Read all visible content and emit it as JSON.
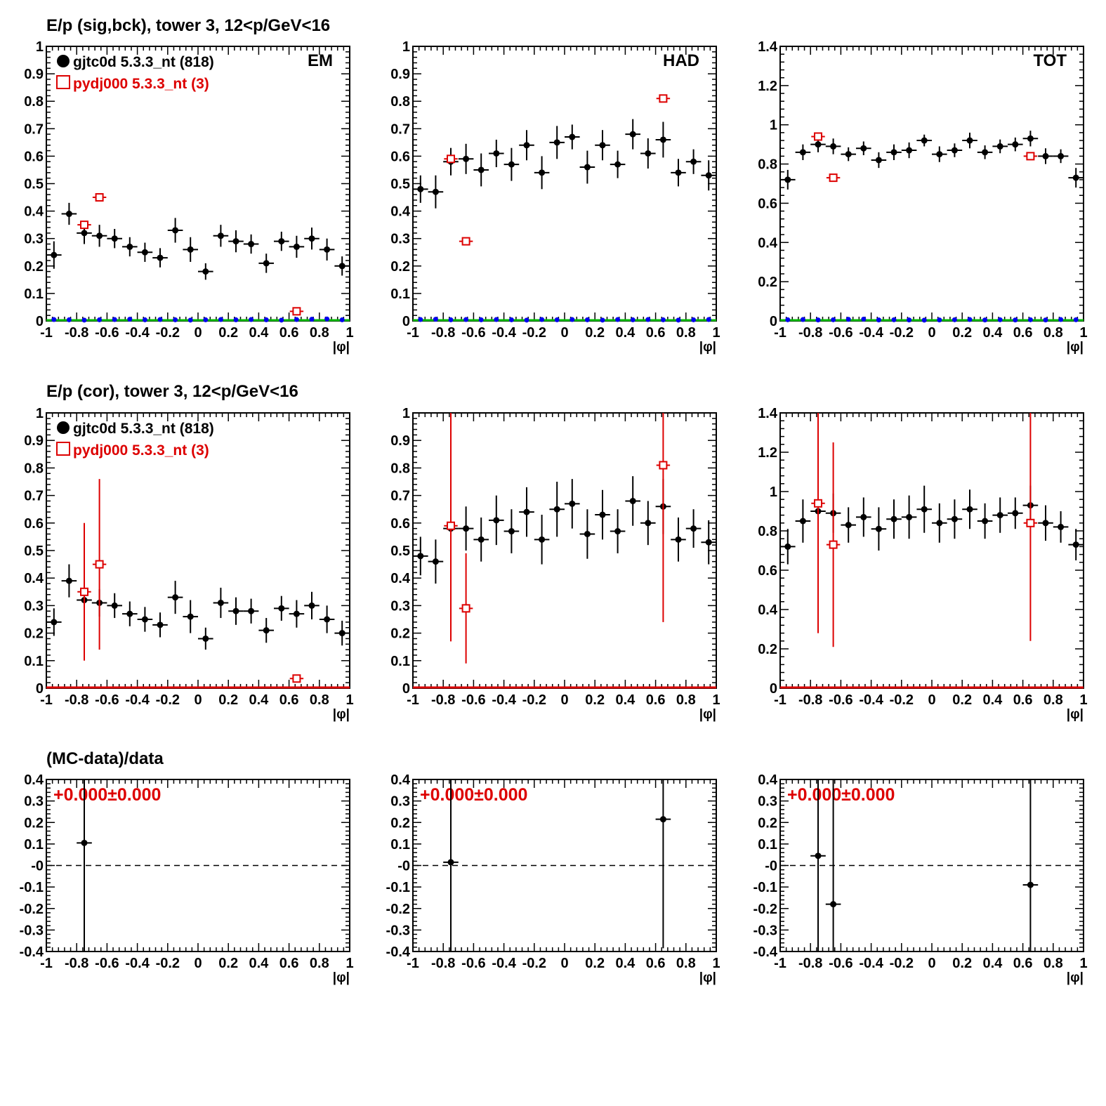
{
  "row_titles": [
    "E/p (sig,bck), tower 3, 12<p/GeV<16",
    "E/p (cor), tower 3, 12<p/GeV<16",
    "(MC-data)/data"
  ],
  "legend": {
    "data": "gjtc0d 5.3.3_nt (818)",
    "mc": "pydj000 5.3.3_nt (3)"
  },
  "colors": {
    "data": "#000000",
    "mc": "#dd0000",
    "bck": "#0000ee",
    "green": "#00bb00",
    "ratio_text": "#dd0000"
  },
  "chart_data": [
    {
      "type": "scatter",
      "row": 0,
      "col": 0,
      "corner_label": "EM",
      "xlabel": "|φ|",
      "xlim": [
        -1,
        1
      ],
      "ylim": [
        0,
        1
      ],
      "xticks": [
        "-1",
        "-0.8",
        "-0.6",
        "-0.4",
        "-0.2",
        "0",
        "0.2",
        "0.4",
        "0.6",
        "0.8",
        "1"
      ],
      "yticks": [
        "0",
        "0.1",
        "0.2",
        "0.3",
        "0.4",
        "0.5",
        "0.6",
        "0.7",
        "0.8",
        "0.9",
        "1"
      ],
      "show_legend": true,
      "baseline": "green",
      "series": [
        {
          "name": "gjtc0d 5.3.3_nt (818)",
          "marker": "dot",
          "x": [
            -0.95,
            -0.85,
            -0.75,
            -0.65,
            -0.55,
            -0.45,
            -0.35,
            -0.25,
            -0.15,
            -0.05,
            0.05,
            0.15,
            0.25,
            0.35,
            0.45,
            0.55,
            0.65,
            0.75,
            0.85,
            0.95
          ],
          "y": [
            0.24,
            0.39,
            0.32,
            0.31,
            0.3,
            0.27,
            0.25,
            0.23,
            0.33,
            0.26,
            0.18,
            0.31,
            0.29,
            0.28,
            0.21,
            0.29,
            0.27,
            0.3,
            0.26,
            0.2
          ],
          "err": [
            0.05,
            0.04,
            0.04,
            0.04,
            0.035,
            0.035,
            0.035,
            0.035,
            0.045,
            0.045,
            0.03,
            0.04,
            0.04,
            0.035,
            0.035,
            0.035,
            0.04,
            0.04,
            0.04,
            0.035
          ]
        },
        {
          "name": "pydj000 5.3.3_nt (3)",
          "marker": "open-square",
          "x": [
            -0.75,
            -0.65,
            0.65
          ],
          "y": [
            0.35,
            0.45,
            0.035
          ],
          "err": [
            0,
            0,
            0
          ]
        },
        {
          "name": "bck",
          "marker": "small-dot",
          "x": [
            -0.95,
            -0.85,
            -0.75,
            -0.65,
            -0.55,
            -0.45,
            -0.35,
            -0.25,
            -0.15,
            -0.05,
            0.05,
            0.15,
            0.25,
            0.35,
            0.45,
            0.55,
            0.65,
            0.75,
            0.85,
            0.95
          ],
          "y": [
            0.005,
            0.004,
            0.003,
            0.004,
            0.005,
            0.006,
            0.004,
            0.005,
            0.004,
            0.003,
            0.004,
            0.005,
            0.004,
            0.005,
            0.004,
            0.003,
            0.005,
            0.006,
            0.007,
            0.004
          ],
          "err": []
        }
      ]
    },
    {
      "type": "scatter",
      "row": 0,
      "col": 1,
      "corner_label": "HAD",
      "xlabel": "|φ|",
      "xlim": [
        -1,
        1
      ],
      "ylim": [
        0,
        1
      ],
      "xticks": [
        "-1",
        "-0.8",
        "-0.6",
        "-0.4",
        "-0.2",
        "0",
        "0.2",
        "0.4",
        "0.6",
        "0.8",
        "1"
      ],
      "yticks": [
        "0",
        "0.1",
        "0.2",
        "0.3",
        "0.4",
        "0.5",
        "0.6",
        "0.7",
        "0.8",
        "0.9",
        "1"
      ],
      "show_legend": false,
      "baseline": "green",
      "series": [
        {
          "name": "gjtc0d 5.3.3_nt (818)",
          "marker": "dot",
          "x": [
            -0.95,
            -0.85,
            -0.75,
            -0.65,
            -0.55,
            -0.45,
            -0.35,
            -0.25,
            -0.15,
            -0.05,
            0.05,
            0.15,
            0.25,
            0.35,
            0.45,
            0.55,
            0.65,
            0.75,
            0.85,
            0.95
          ],
          "y": [
            0.48,
            0.47,
            0.58,
            0.59,
            0.55,
            0.61,
            0.57,
            0.64,
            0.54,
            0.65,
            0.67,
            0.56,
            0.64,
            0.57,
            0.68,
            0.61,
            0.66,
            0.54,
            0.58,
            0.53
          ],
          "err": [
            0.05,
            0.06,
            0.05,
            0.055,
            0.06,
            0.05,
            0.06,
            0.055,
            0.06,
            0.06,
            0.045,
            0.06,
            0.055,
            0.05,
            0.055,
            0.055,
            0.065,
            0.05,
            0.045,
            0.055
          ]
        },
        {
          "name": "pydj000 5.3.3_nt (3)",
          "marker": "open-square",
          "x": [
            -0.75,
            -0.65,
            0.65
          ],
          "y": [
            0.59,
            0.29,
            0.81
          ],
          "err": [
            0,
            0,
            0
          ]
        },
        {
          "name": "bck",
          "marker": "small-dot",
          "x": [
            -0.95,
            -0.85,
            -0.75,
            -0.65,
            -0.55,
            -0.45,
            -0.35,
            -0.25,
            -0.15,
            -0.05,
            0.05,
            0.15,
            0.25,
            0.35,
            0.45,
            0.55,
            0.65,
            0.75,
            0.85,
            0.95
          ],
          "y": [
            0.005,
            0.006,
            0.004,
            0.005,
            0.004,
            0.005,
            0.004,
            0.003,
            0.005,
            0.004,
            0.005,
            0.004,
            0.003,
            0.005,
            0.004,
            0.005,
            0.004,
            0.003,
            0.004,
            0.005
          ],
          "err": []
        }
      ]
    },
    {
      "type": "scatter",
      "row": 0,
      "col": 2,
      "corner_label": "TOT",
      "xlabel": "|φ|",
      "xlim": [
        -1,
        1
      ],
      "ylim": [
        0,
        1.4
      ],
      "xticks": [
        "-1",
        "-0.8",
        "-0.6",
        "-0.4",
        "-0.2",
        "0",
        "0.2",
        "0.4",
        "0.6",
        "0.8",
        "1"
      ],
      "yticks": [
        "0",
        "0.2",
        "0.4",
        "0.6",
        "0.8",
        "1",
        "1.2",
        "1.4"
      ],
      "show_legend": false,
      "baseline": "green",
      "series": [
        {
          "name": "gjtc0d 5.3.3_nt (818)",
          "marker": "dot",
          "x": [
            -0.95,
            -0.85,
            -0.75,
            -0.65,
            -0.55,
            -0.45,
            -0.35,
            -0.25,
            -0.15,
            -0.05,
            0.05,
            0.15,
            0.25,
            0.35,
            0.45,
            0.55,
            0.65,
            0.75,
            0.85,
            0.95
          ],
          "y": [
            0.72,
            0.86,
            0.9,
            0.89,
            0.85,
            0.88,
            0.82,
            0.86,
            0.87,
            0.92,
            0.85,
            0.87,
            0.92,
            0.86,
            0.89,
            0.9,
            0.93,
            0.84,
            0.84,
            0.73
          ],
          "err": [
            0.05,
            0.04,
            0.04,
            0.04,
            0.035,
            0.035,
            0.04,
            0.04,
            0.04,
            0.03,
            0.04,
            0.035,
            0.04,
            0.035,
            0.035,
            0.035,
            0.04,
            0.04,
            0.035,
            0.05
          ]
        },
        {
          "name": "pydj000 5.3.3_nt (3)",
          "marker": "open-square",
          "x": [
            -0.75,
            -0.65,
            0.65
          ],
          "y": [
            0.94,
            0.73,
            0.84
          ],
          "err": [
            0,
            0,
            0
          ]
        },
        {
          "name": "bck",
          "marker": "small-dot",
          "x": [
            -0.95,
            -0.85,
            -0.75,
            -0.65,
            -0.55,
            -0.45,
            -0.35,
            -0.25,
            -0.15,
            -0.05,
            0.05,
            0.15,
            0.25,
            0.35,
            0.45,
            0.55,
            0.65,
            0.75,
            0.85,
            0.95
          ],
          "y": [
            0.006,
            0.007,
            0.005,
            0.006,
            0.008,
            0.009,
            0.005,
            0.006,
            0.005,
            0.004,
            0.005,
            0.006,
            0.007,
            0.005,
            0.006,
            0.005,
            0.006,
            0.005,
            0.007,
            0.006
          ],
          "err": []
        }
      ]
    },
    {
      "type": "scatter",
      "row": 1,
      "col": 0,
      "corner_label": "",
      "xlabel": "|φ|",
      "xlim": [
        -1,
        1
      ],
      "ylim": [
        0,
        1
      ],
      "xticks": [
        "-1",
        "-0.8",
        "-0.6",
        "-0.4",
        "-0.2",
        "0",
        "0.2",
        "0.4",
        "0.6",
        "0.8",
        "1"
      ],
      "yticks": [
        "0",
        "0.1",
        "0.2",
        "0.3",
        "0.4",
        "0.5",
        "0.6",
        "0.7",
        "0.8",
        "0.9",
        "1"
      ],
      "show_legend": true,
      "baseline": "red",
      "series": [
        {
          "name": "gjtc0d 5.3.3_nt (818)",
          "marker": "dot",
          "x": [
            -0.95,
            -0.85,
            -0.75,
            -0.65,
            -0.55,
            -0.45,
            -0.35,
            -0.25,
            -0.15,
            -0.05,
            0.05,
            0.15,
            0.25,
            0.35,
            0.45,
            0.55,
            0.65,
            0.75,
            0.85,
            0.95
          ],
          "y": [
            0.24,
            0.39,
            0.32,
            0.31,
            0.3,
            0.27,
            0.25,
            0.23,
            0.33,
            0.26,
            0.18,
            0.31,
            0.28,
            0.28,
            0.21,
            0.29,
            0.27,
            0.3,
            0.25,
            0.2
          ],
          "err": [
            0.05,
            0.06,
            0.05,
            0.05,
            0.045,
            0.045,
            0.045,
            0.045,
            0.06,
            0.06,
            0.04,
            0.055,
            0.05,
            0.045,
            0.045,
            0.045,
            0.05,
            0.05,
            0.05,
            0.045
          ]
        },
        {
          "name": "pydj000 5.3.3_nt (3)",
          "marker": "open-square",
          "x": [
            -0.75,
            -0.65,
            0.65
          ],
          "y": [
            0.35,
            0.45,
            0.035
          ],
          "err": [
            0.25,
            0.31,
            0
          ]
        }
      ]
    },
    {
      "type": "scatter",
      "row": 1,
      "col": 1,
      "corner_label": "",
      "xlabel": "|φ|",
      "xlim": [
        -1,
        1
      ],
      "ylim": [
        0,
        1
      ],
      "xticks": [
        "-1",
        "-0.8",
        "-0.6",
        "-0.4",
        "-0.2",
        "0",
        "0.2",
        "0.4",
        "0.6",
        "0.8",
        "1"
      ],
      "yticks": [
        "0",
        "0.1",
        "0.2",
        "0.3",
        "0.4",
        "0.5",
        "0.6",
        "0.7",
        "0.8",
        "0.9",
        "1"
      ],
      "show_legend": false,
      "baseline": "red",
      "series": [
        {
          "name": "gjtc0d 5.3.3_nt (818)",
          "marker": "dot",
          "x": [
            -0.95,
            -0.85,
            -0.75,
            -0.65,
            -0.55,
            -0.45,
            -0.35,
            -0.25,
            -0.15,
            -0.05,
            0.05,
            0.15,
            0.25,
            0.35,
            0.45,
            0.55,
            0.65,
            0.75,
            0.85,
            0.95
          ],
          "y": [
            0.48,
            0.46,
            0.58,
            0.58,
            0.54,
            0.61,
            0.57,
            0.64,
            0.54,
            0.65,
            0.67,
            0.56,
            0.63,
            0.57,
            0.68,
            0.6,
            0.66,
            0.54,
            0.58,
            0.53
          ],
          "err": [
            0.07,
            0.08,
            0.07,
            0.08,
            0.08,
            0.09,
            0.08,
            0.09,
            0.09,
            0.1,
            0.09,
            0.09,
            0.09,
            0.08,
            0.09,
            0.08,
            0.1,
            0.08,
            0.07,
            0.08
          ]
        },
        {
          "name": "pydj000 5.3.3_nt (3)",
          "marker": "open-square",
          "x": [
            -0.75,
            -0.65,
            0.65
          ],
          "y": [
            0.59,
            0.29,
            0.81
          ],
          "err": [
            0.42,
            0.2,
            0.57
          ]
        }
      ]
    },
    {
      "type": "scatter",
      "row": 1,
      "col": 2,
      "corner_label": "",
      "xlabel": "|φ|",
      "xlim": [
        -1,
        1
      ],
      "ylim": [
        0,
        1.4
      ],
      "xticks": [
        "-1",
        "-0.8",
        "-0.6",
        "-0.4",
        "-0.2",
        "0",
        "0.2",
        "0.4",
        "0.6",
        "0.8",
        "1"
      ],
      "yticks": [
        "0",
        "0.2",
        "0.4",
        "0.6",
        "0.8",
        "1",
        "1.2",
        "1.4"
      ],
      "show_legend": false,
      "baseline": "red",
      "series": [
        {
          "name": "gjtc0d 5.3.3_nt (818)",
          "marker": "dot",
          "x": [
            -0.95,
            -0.85,
            -0.75,
            -0.65,
            -0.55,
            -0.45,
            -0.35,
            -0.25,
            -0.15,
            -0.05,
            0.05,
            0.15,
            0.25,
            0.35,
            0.45,
            0.55,
            0.65,
            0.75,
            0.85,
            0.95
          ],
          "y": [
            0.72,
            0.85,
            0.9,
            0.89,
            0.83,
            0.87,
            0.81,
            0.86,
            0.87,
            0.91,
            0.84,
            0.86,
            0.91,
            0.85,
            0.88,
            0.89,
            0.93,
            0.84,
            0.82,
            0.73
          ],
          "err": [
            0.09,
            0.11,
            0.1,
            0.1,
            0.09,
            0.1,
            0.11,
            0.1,
            0.11,
            0.12,
            0.1,
            0.1,
            0.1,
            0.09,
            0.09,
            0.08,
            0.1,
            0.09,
            0.08,
            0.08
          ]
        },
        {
          "name": "pydj000 5.3.3_nt (3)",
          "marker": "open-square",
          "x": [
            -0.75,
            -0.65,
            0.65
          ],
          "y": [
            0.94,
            0.73,
            0.84
          ],
          "err": [
            0.66,
            0.52,
            0.6
          ]
        }
      ]
    },
    {
      "type": "scatter",
      "row": 2,
      "col": 0,
      "corner_label": "",
      "ratio_text": "+0.000±0.000",
      "xlabel": "|φ|",
      "xlim": [
        -1,
        1
      ],
      "ylim": [
        -0.4,
        0.4
      ],
      "xticks": [
        "-1",
        "-0.8",
        "-0.6",
        "-0.4",
        "-0.2",
        "0",
        "0.2",
        "0.4",
        "0.6",
        "0.8",
        "1"
      ],
      "yticks": [
        "-0.4",
        "-0.3",
        "-0.2",
        "-0.1",
        "-0",
        "0.1",
        "0.2",
        "0.3",
        "0.4"
      ],
      "show_legend": false,
      "baseline": "dashed",
      "series": [
        {
          "name": "ratio",
          "marker": "dot-small",
          "x": [
            -0.75
          ],
          "y": [
            0.105
          ],
          "err": [
            0.6
          ]
        }
      ]
    },
    {
      "type": "scatter",
      "row": 2,
      "col": 1,
      "corner_label": "",
      "ratio_text": "+0.000±0.000",
      "xlabel": "|φ|",
      "xlim": [
        -1,
        1
      ],
      "ylim": [
        -0.4,
        0.4
      ],
      "xticks": [
        "-1",
        "-0.8",
        "-0.6",
        "-0.4",
        "-0.2",
        "0",
        "0.2",
        "0.4",
        "0.6",
        "0.8",
        "1"
      ],
      "yticks": [
        "-0.4",
        "-0.3",
        "-0.2",
        "-0.1",
        "-0",
        "0.1",
        "0.2",
        "0.3",
        "0.4"
      ],
      "show_legend": false,
      "baseline": "dashed",
      "series": [
        {
          "name": "ratio",
          "marker": "dot-small",
          "x": [
            -0.75,
            0.65
          ],
          "y": [
            0.015,
            0.215
          ],
          "err": [
            0.6,
            0.6
          ]
        }
      ]
    },
    {
      "type": "scatter",
      "row": 2,
      "col": 2,
      "corner_label": "",
      "ratio_text": "+0.000±0.000",
      "xlabel": "|φ|",
      "xlim": [
        -1,
        1
      ],
      "ylim": [
        -0.4,
        0.4
      ],
      "xticks": [
        "-1",
        "-0.8",
        "-0.6",
        "-0.4",
        "-0.2",
        "0",
        "0.2",
        "0.4",
        "0.6",
        "0.8",
        "1"
      ],
      "yticks": [
        "-0.4",
        "-0.3",
        "-0.2",
        "-0.1",
        "-0",
        "0.1",
        "0.2",
        "0.3",
        "0.4"
      ],
      "show_legend": false,
      "baseline": "dashed",
      "series": [
        {
          "name": "ratio",
          "marker": "dot-small",
          "x": [
            -0.75,
            -0.65,
            0.65
          ],
          "y": [
            0.045,
            -0.18,
            -0.09
          ],
          "err": [
            0.6,
            0.6,
            0.6
          ]
        }
      ]
    }
  ]
}
